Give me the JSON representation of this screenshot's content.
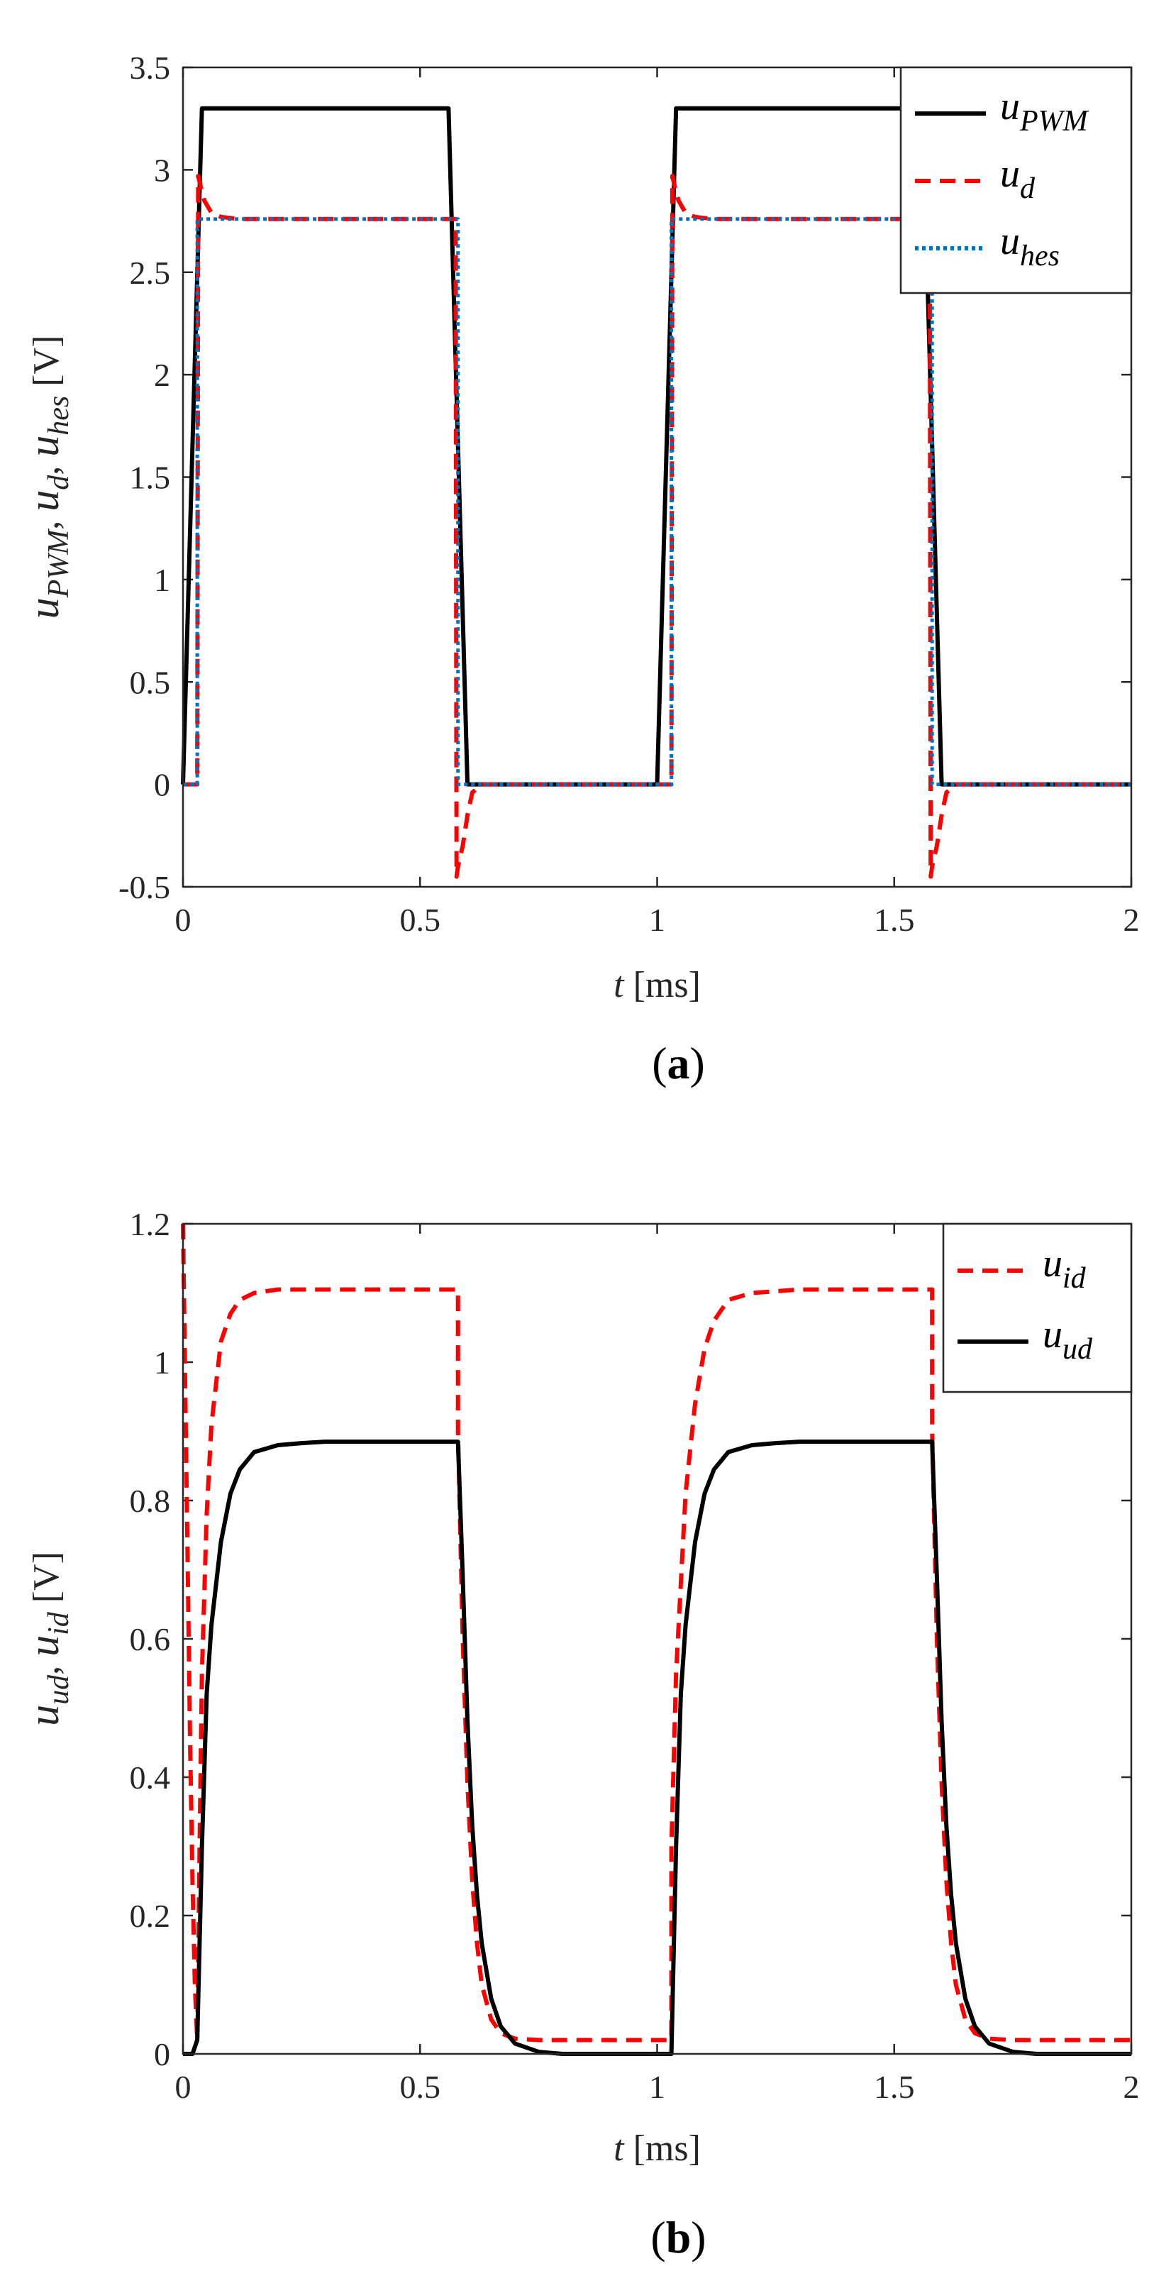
{
  "chart_data": [
    {
      "type": "line",
      "caption": "(a)",
      "xlabel_var": "t",
      "xlabel_unit": "[ms]",
      "ylabel_main": "u",
      "ylabel_subs": [
        "PWM",
        "d",
        "hes"
      ],
      "ylabel_unit": "[V]",
      "xlim": [
        0,
        2
      ],
      "ylim": [
        -0.5,
        3.5
      ],
      "xticks": [
        "0",
        "0.5",
        "1",
        "1.5",
        "2"
      ],
      "yticks": [
        "-0.5",
        "0",
        "0.5",
        "1",
        "1.5",
        "2",
        "2.5",
        "3",
        "3.5"
      ],
      "legend_position": "top-right",
      "series": [
        {
          "name": "u_PWM",
          "legend_main": "u",
          "legend_sub": "PWM",
          "color": "#000000",
          "style": "solid",
          "x": [
            0,
            0.04,
            0.56,
            0.6,
            1.0,
            1.04,
            1.56,
            1.6,
            2.0
          ],
          "y": [
            0,
            3.3,
            3.3,
            0,
            0,
            3.3,
            3.3,
            0,
            0
          ]
        },
        {
          "name": "u_d",
          "legend_main": "u",
          "legend_sub": "d",
          "color": "#ff0000",
          "style": "dashed",
          "x": [
            0,
            0.03,
            0.032,
            0.036,
            0.045,
            0.06,
            0.08,
            0.12,
            0.575,
            0.577,
            0.58,
            0.59,
            0.6,
            0.61,
            0.63,
            1.03,
            1.032,
            1.036,
            1.045,
            1.06,
            1.08,
            1.12,
            1.575,
            1.577,
            1.58,
            1.59,
            1.6,
            1.61,
            1.63,
            2.0
          ],
          "y": [
            0,
            0,
            2.97,
            2.93,
            2.85,
            2.79,
            2.77,
            2.76,
            2.76,
            -0.45,
            -0.4,
            -0.3,
            -0.15,
            -0.04,
            0,
            0,
            2.97,
            2.93,
            2.85,
            2.79,
            2.77,
            2.76,
            2.76,
            -0.45,
            -0.4,
            -0.3,
            -0.15,
            -0.04,
            0,
            0
          ]
        },
        {
          "name": "u_hes",
          "legend_main": "u",
          "legend_sub": "hes",
          "color": "#0072bd",
          "style": "dotted",
          "x": [
            0,
            0.03,
            0.03,
            0.58,
            0.58,
            1.03,
            1.03,
            1.58,
            1.58,
            2.0
          ],
          "y": [
            0,
            0,
            2.76,
            2.76,
            0,
            0,
            2.76,
            2.76,
            0,
            0
          ]
        }
      ]
    },
    {
      "type": "line",
      "caption": "(b)",
      "xlabel_var": "t",
      "xlabel_unit": "[ms]",
      "ylabel_main": "u",
      "ylabel_subs": [
        "ud",
        "id"
      ],
      "ylabel_unit": "[V]",
      "xlim": [
        0,
        2
      ],
      "ylim": [
        0,
        1.2
      ],
      "xticks": [
        "0",
        "0.5",
        "1",
        "1.5",
        "2"
      ],
      "yticks": [
        "0",
        "0.2",
        "0.4",
        "0.6",
        "0.8",
        "1",
        "1.2"
      ],
      "legend_position": "top-right",
      "series": [
        {
          "name": "u_id",
          "legend_main": "u",
          "legend_sub": "id",
          "color": "#ff0000",
          "style": "dashed",
          "x": [
            0,
            0.005,
            0.01,
            0.015,
            0.02,
            0.025,
            0.03,
            0.035,
            0.04,
            0.05,
            0.06,
            0.08,
            0.1,
            0.12,
            0.15,
            0.2,
            0.3,
            0.58,
            0.58,
            0.59,
            0.6,
            0.61,
            0.62,
            0.63,
            0.65,
            0.67,
            0.7,
            0.75,
            1.03,
            1.03,
            1.04,
            1.06,
            1.08,
            1.1,
            1.12,
            1.15,
            1.2,
            1.3,
            1.58,
            1.58,
            1.59,
            1.6,
            1.61,
            1.62,
            1.63,
            1.65,
            1.67,
            1.7,
            1.75,
            2.0
          ],
          "y": [
            1.2,
            0.95,
            0.7,
            0.45,
            0.25,
            0.1,
            0.02,
            0.3,
            0.55,
            0.78,
            0.91,
            1.03,
            1.07,
            1.09,
            1.1,
            1.105,
            1.105,
            1.105,
            0.9,
            0.6,
            0.39,
            0.25,
            0.16,
            0.1,
            0.05,
            0.03,
            0.022,
            0.02,
            0.02,
            0.3,
            0.55,
            0.81,
            0.94,
            1.02,
            1.06,
            1.09,
            1.1,
            1.105,
            1.105,
            0.9,
            0.6,
            0.39,
            0.25,
            0.16,
            0.1,
            0.05,
            0.03,
            0.022,
            0.02,
            0.02
          ]
        },
        {
          "name": "u_ud",
          "legend_main": "u",
          "legend_sub": "ud",
          "color": "#000000",
          "style": "solid",
          "x": [
            0,
            0.02,
            0.03,
            0.04,
            0.05,
            0.06,
            0.07,
            0.08,
            0.1,
            0.12,
            0.15,
            0.2,
            0.25,
            0.3,
            0.58,
            0.59,
            0.6,
            0.61,
            0.62,
            0.63,
            0.65,
            0.67,
            0.7,
            0.75,
            0.8,
            1.03,
            1.04,
            1.05,
            1.06,
            1.07,
            1.08,
            1.1,
            1.12,
            1.15,
            1.2,
            1.25,
            1.3,
            1.58,
            1.59,
            1.6,
            1.61,
            1.62,
            1.63,
            1.65,
            1.67,
            1.7,
            1.75,
            1.8,
            2.0
          ],
          "y": [
            0,
            0,
            0.02,
            0.3,
            0.52,
            0.62,
            0.68,
            0.74,
            0.81,
            0.845,
            0.87,
            0.88,
            0.883,
            0.885,
            0.885,
            0.69,
            0.48,
            0.33,
            0.23,
            0.16,
            0.08,
            0.04,
            0.015,
            0.003,
            0,
            0,
            0.3,
            0.52,
            0.62,
            0.68,
            0.74,
            0.81,
            0.845,
            0.87,
            0.88,
            0.883,
            0.885,
            0.885,
            0.69,
            0.48,
            0.33,
            0.23,
            0.16,
            0.08,
            0.04,
            0.015,
            0.003,
            0,
            0
          ]
        }
      ]
    }
  ]
}
